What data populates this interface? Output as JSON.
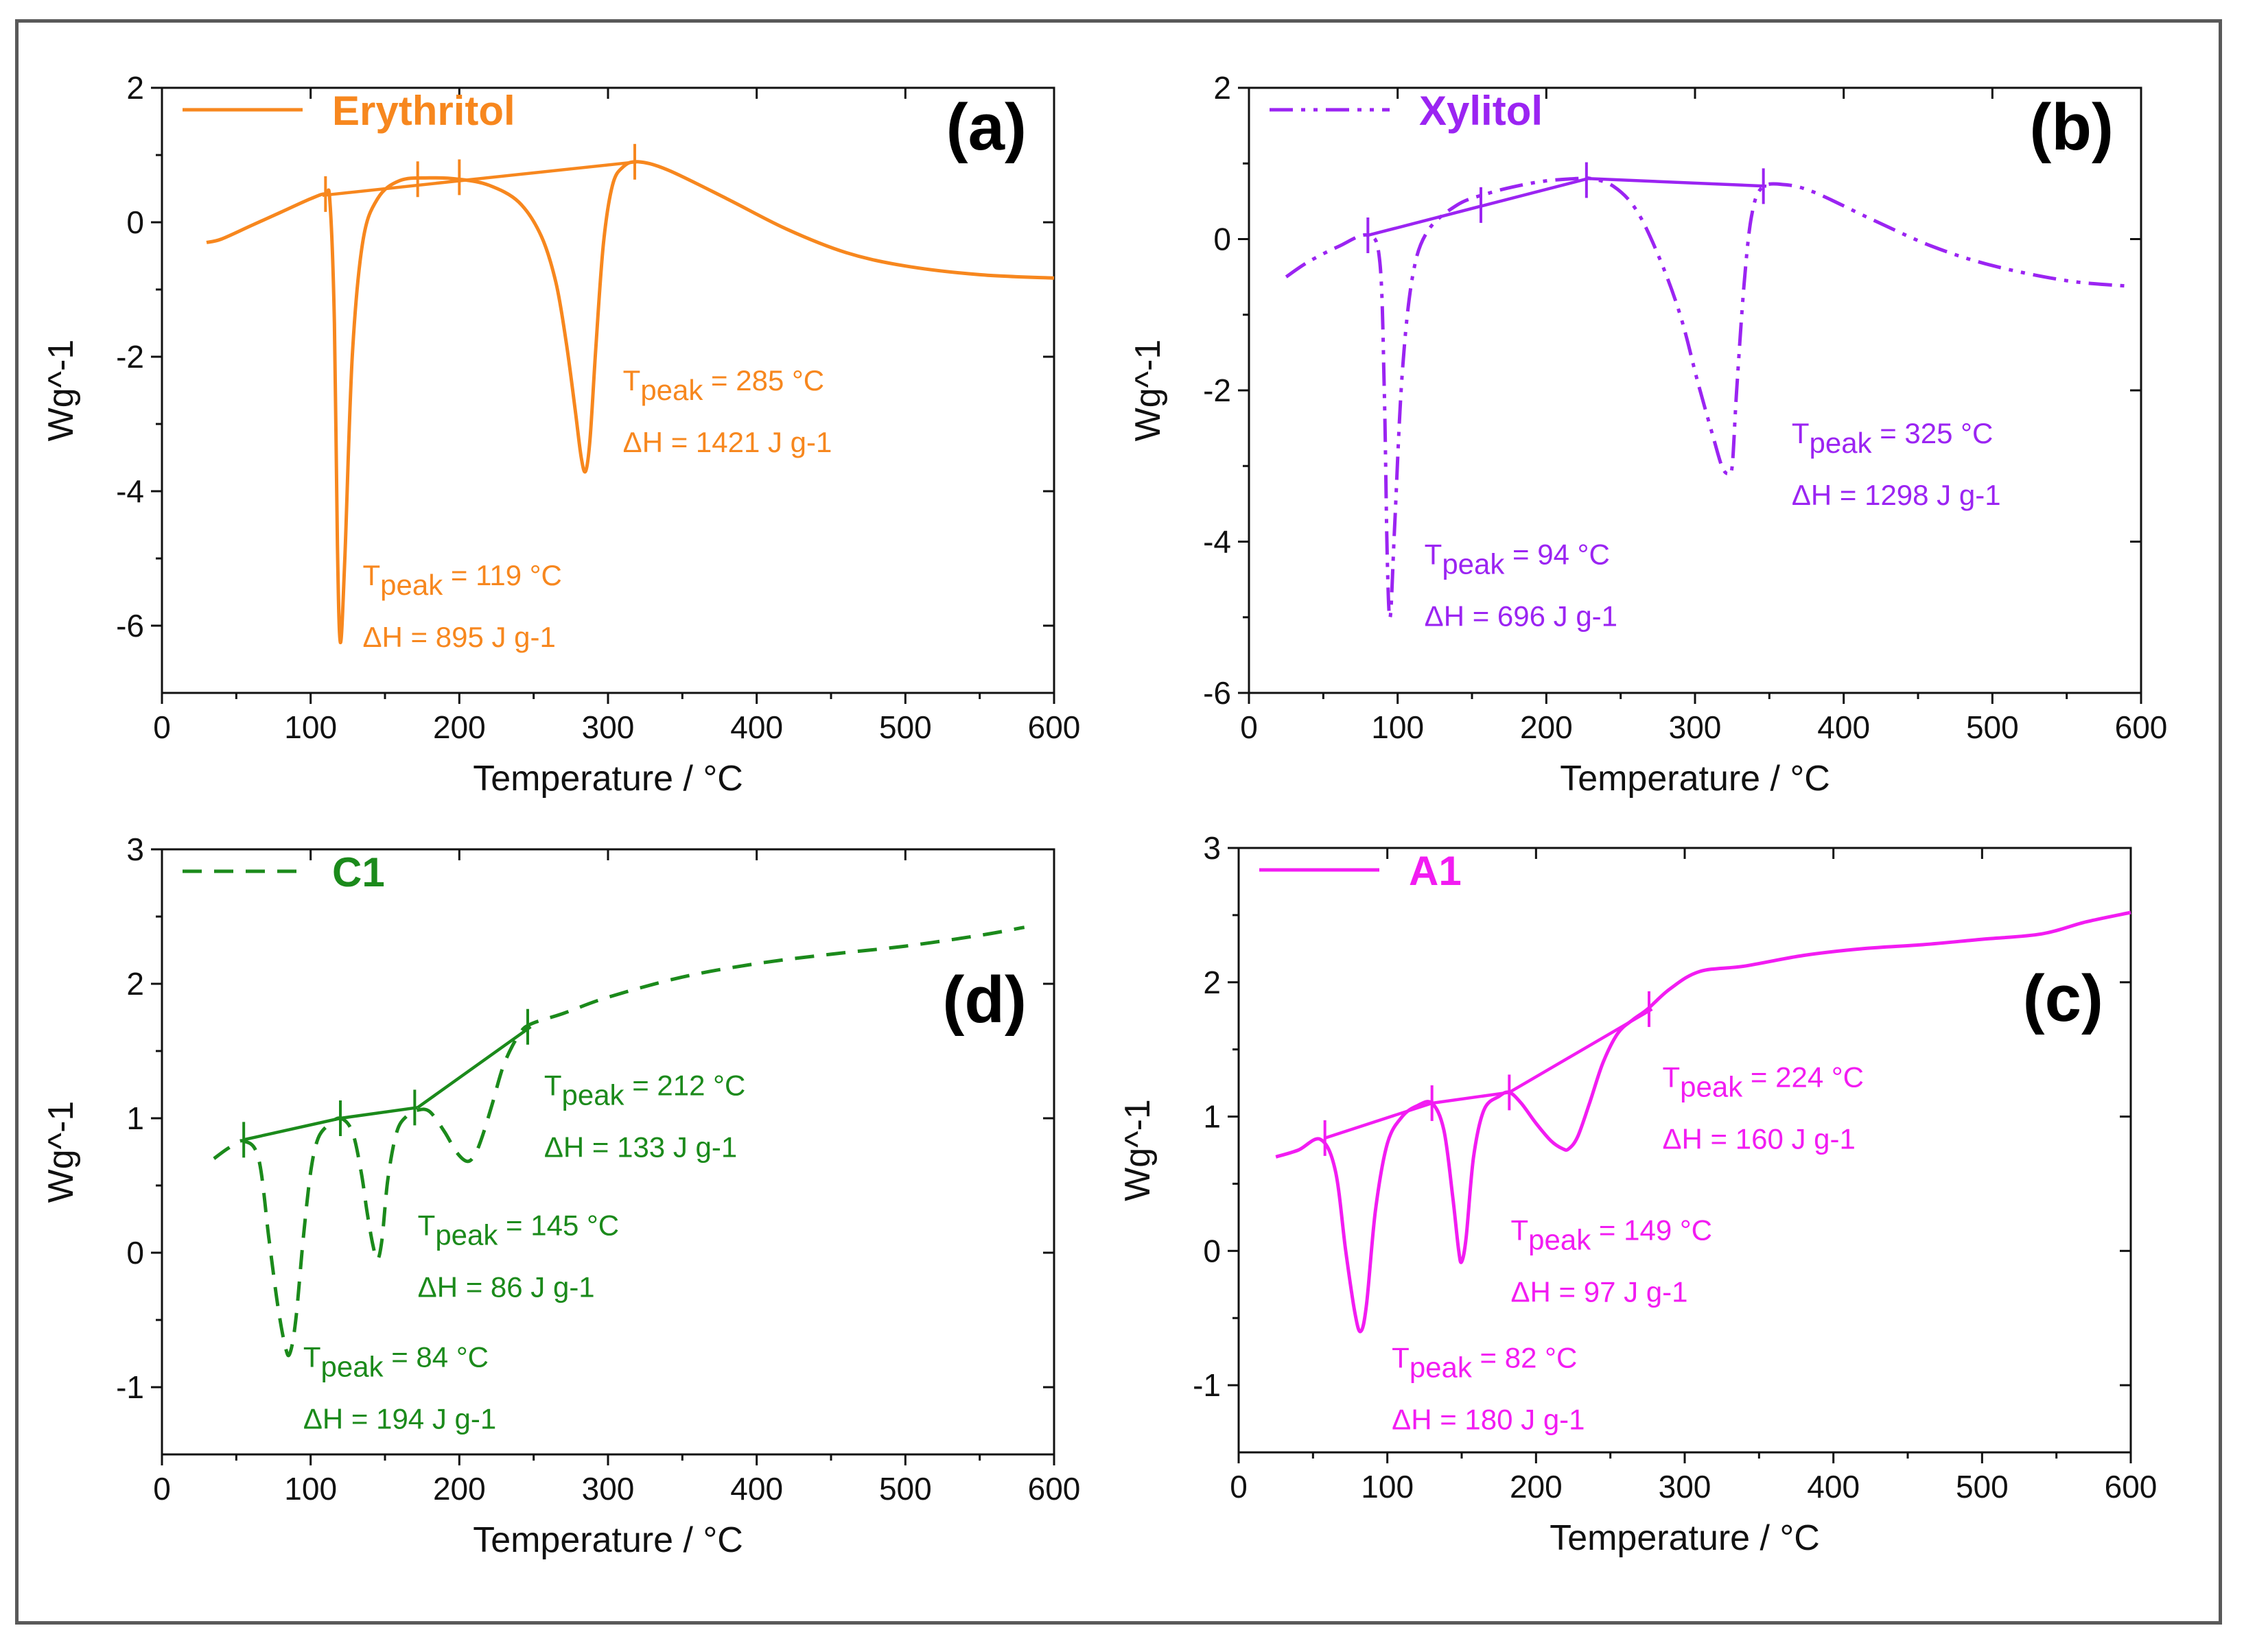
{
  "chart_data": [
    {
      "type": "line",
      "panel_label": "(a)",
      "legend": {
        "name": "Erythritol",
        "placement": "top-left",
        "line_style": "solid"
      },
      "color": "#F7871E",
      "xlabel": "Temperature / °C",
      "ylabel": "Wg^-1",
      "xlim": [
        0,
        600
      ],
      "ylim": [
        -7,
        2
      ],
      "xticks": [
        0,
        100,
        200,
        300,
        400,
        500,
        600
      ],
      "yticks": [
        -6,
        -4,
        -2,
        0,
        2
      ],
      "series": [
        {
          "name": "Erythritol",
          "x": [
            30,
            40,
            60,
            80,
            100,
            110,
            113,
            116,
            118,
            120,
            123,
            128,
            135,
            145,
            160,
            180,
            200,
            220,
            240,
            255,
            265,
            272,
            278,
            282,
            285,
            288,
            292,
            297,
            303,
            310,
            320,
            340,
            380,
            420,
            460,
            500,
            550,
            600
          ],
          "y": [
            -0.3,
            -0.25,
            -0.05,
            0.15,
            0.35,
            0.42,
            0.3,
            -1.5,
            -4.8,
            -6.25,
            -5.0,
            -2.0,
            -0.3,
            0.35,
            0.62,
            0.66,
            0.64,
            0.55,
            0.3,
            -0.2,
            -0.9,
            -1.8,
            -2.8,
            -3.5,
            -3.7,
            -3.2,
            -1.8,
            -0.3,
            0.55,
            0.82,
            0.9,
            0.78,
            0.35,
            -0.1,
            -0.45,
            -0.65,
            -0.78,
            -0.83
          ]
        }
      ],
      "baselines": [
        {
          "x": [
            108,
            320
          ],
          "y": [
            0.4,
            0.9
          ]
        }
      ],
      "markers": [
        {
          "x": 110,
          "y": 0.42
        },
        {
          "x": 172,
          "y": 0.64
        },
        {
          "x": 200,
          "y": 0.67
        },
        {
          "x": 318,
          "y": 0.9
        }
      ],
      "annotations": [
        {
          "label_main": "T",
          "label_sub": "peak",
          "label_rest": " = 285 °C",
          "enthalpy": "ΔH = 1421 J g-1",
          "x": 310,
          "y": -2.5
        },
        {
          "label_main": "T",
          "label_sub": "peak",
          "label_rest": " = 119 °C",
          "enthalpy": "ΔH = 895 J g-1",
          "x": 135,
          "y": -5.4
        }
      ]
    },
    {
      "type": "line",
      "panel_label": "(b)",
      "legend": {
        "name": "Xylitol",
        "placement": "top-left",
        "line_style": "dash-dot-dot"
      },
      "color": "#9B24F2",
      "xlabel": "Temperature / °C",
      "ylabel": "Wg^-1",
      "xlim": [
        0,
        600
      ],
      "ylim": [
        -6,
        2
      ],
      "xticks": [
        0,
        100,
        200,
        300,
        400,
        500,
        600
      ],
      "yticks": [
        -6,
        -4,
        -2,
        0,
        2
      ],
      "series": [
        {
          "name": "Xylitol",
          "x": [
            25,
            40,
            60,
            80,
            88,
            91,
            93,
            95,
            98,
            103,
            110,
            120,
            140,
            160,
            180,
            200,
            220,
            230,
            245,
            260,
            275,
            290,
            302,
            312,
            318,
            322,
            325,
            328,
            333,
            338,
            345,
            360,
            380,
            420,
            460,
            500,
            550,
            590
          ],
          "y": [
            -0.5,
            -0.3,
            -0.1,
            0.05,
            -0.3,
            -2.0,
            -4.2,
            -5.0,
            -3.8,
            -1.8,
            -0.5,
            0.1,
            0.45,
            0.6,
            0.7,
            0.77,
            0.8,
            0.8,
            0.7,
            0.4,
            -0.2,
            -1.0,
            -1.9,
            -2.6,
            -3.0,
            -3.1,
            -3.0,
            -2.0,
            -0.6,
            0.3,
            0.68,
            0.72,
            0.62,
            0.25,
            -0.1,
            -0.35,
            -0.55,
            -0.62
          ]
        }
      ],
      "baselines": [
        {
          "x": [
            80,
            228
          ],
          "y": [
            0.05,
            0.8
          ]
        },
        {
          "x": [
            228,
            348
          ],
          "y": [
            0.8,
            0.7
          ]
        }
      ],
      "markers": [
        {
          "x": 80,
          "y": 0.05
        },
        {
          "x": 156,
          "y": 0.45
        },
        {
          "x": 227,
          "y": 0.78
        },
        {
          "x": 346,
          "y": 0.7
        }
      ],
      "annotations": [
        {
          "label_main": "T",
          "label_sub": "peak",
          "label_rest": " = 325 °C",
          "enthalpy": "ΔH = 1298 J g-1",
          "x": 365,
          "y": -2.7
        },
        {
          "label_main": "T",
          "label_sub": "peak",
          "label_rest": " = 94 °C",
          "enthalpy": "ΔH = 696 J g-1",
          "x": 118,
          "y": -4.3
        }
      ]
    },
    {
      "type": "line",
      "panel_label": "(d)",
      "legend": {
        "name": "C1",
        "placement": "top-left",
        "line_style": "dashed"
      },
      "color": "#1B8A1B",
      "xlabel": "Temperature / °C",
      "ylabel": "Wg^-1",
      "xlim": [
        0,
        600
      ],
      "ylim": [
        -1.5,
        3
      ],
      "xticks": [
        0,
        100,
        200,
        300,
        400,
        500,
        600
      ],
      "yticks": [
        -1,
        0,
        1,
        2,
        3
      ],
      "series": [
        {
          "name": "C1",
          "x": [
            35,
            45,
            55,
            65,
            72,
            78,
            83,
            86,
            90,
            95,
            100,
            105,
            112,
            120,
            128,
            134,
            138,
            142,
            145,
            148,
            152,
            158,
            165,
            172,
            180,
            190,
            198,
            205,
            210,
            215,
            222,
            230,
            240,
            248,
            270,
            300,
            350,
            400,
            450,
            500,
            550,
            580
          ],
          "y": [
            0.7,
            0.78,
            0.83,
            0.7,
            0.1,
            -0.4,
            -0.7,
            -0.75,
            -0.5,
            0.1,
            0.6,
            0.85,
            0.95,
            1.0,
            0.9,
            0.6,
            0.3,
            0.05,
            -0.05,
            0.1,
            0.55,
            0.9,
            1.02,
            1.06,
            1.05,
            0.9,
            0.75,
            0.68,
            0.72,
            0.85,
            1.1,
            1.4,
            1.62,
            1.7,
            1.78,
            1.9,
            2.05,
            2.15,
            2.22,
            2.28,
            2.36,
            2.42
          ]
        }
      ],
      "baselines": [
        {
          "x": [
            55,
            120
          ],
          "y": [
            0.84,
            1.0
          ]
        },
        {
          "x": [
            120,
            172
          ],
          "y": [
            1.0,
            1.08
          ]
        },
        {
          "x": [
            172,
            248
          ],
          "y": [
            1.08,
            1.68
          ]
        }
      ],
      "markers": [
        {
          "x": 55,
          "y": 0.84
        },
        {
          "x": 120,
          "y": 1.0
        },
        {
          "x": 170,
          "y": 1.08
        },
        {
          "x": 246,
          "y": 1.68
        }
      ],
      "annotations": [
        {
          "label_main": "T",
          "label_sub": "peak",
          "label_rest": " = 212 °C",
          "enthalpy": "ΔH = 133 J g-1",
          "x": 257,
          "y": 1.17
        },
        {
          "label_main": "T",
          "label_sub": "peak",
          "label_rest": " = 145 °C",
          "enthalpy": "ΔH = 86 J g-1",
          "x": 172,
          "y": 0.13
        },
        {
          "label_main": "T",
          "label_sub": "peak",
          "label_rest": " = 84 °C",
          "enthalpy": "ΔH = 194 J g-1",
          "x": 95,
          "y": -0.85
        }
      ]
    },
    {
      "type": "line",
      "panel_label": "(c)",
      "legend": {
        "name": "A1",
        "placement": "top-left",
        "line_style": "solid"
      },
      "color": "#F21CF2",
      "xlabel": "Temperature / °C",
      "ylabel": "Wg^-1",
      "xlim": [
        0,
        600
      ],
      "ylim": [
        -1.5,
        3
      ],
      "xticks": [
        0,
        100,
        200,
        300,
        400,
        500,
        600
      ],
      "yticks": [
        -1,
        0,
        1,
        2,
        3
      ],
      "series": [
        {
          "name": "A1",
          "x": [
            25,
            40,
            55,
            65,
            72,
            78,
            82,
            86,
            92,
            100,
            110,
            120,
            130,
            138,
            144,
            148,
            150,
            153,
            158,
            165,
            175,
            182,
            190,
            200,
            210,
            218,
            222,
            228,
            236,
            245,
            255,
            265,
            275,
            290,
            310,
            340,
            380,
            420,
            460,
            500,
            540,
            570,
            600
          ],
          "y": [
            0.7,
            0.75,
            0.83,
            0.6,
            0.0,
            -0.45,
            -0.6,
            -0.4,
            0.3,
            0.8,
            1.0,
            1.08,
            1.1,
            0.9,
            0.4,
            0.0,
            -0.08,
            0.1,
            0.7,
            1.05,
            1.15,
            1.18,
            1.1,
            0.95,
            0.82,
            0.76,
            0.76,
            0.85,
            1.1,
            1.4,
            1.62,
            1.72,
            1.8,
            1.95,
            2.08,
            2.12,
            2.2,
            2.25,
            2.28,
            2.32,
            2.36,
            2.45,
            2.52
          ]
        }
      ],
      "baselines": [
        {
          "x": [
            58,
            130
          ],
          "y": [
            0.84,
            1.1
          ]
        },
        {
          "x": [
            130,
            182
          ],
          "y": [
            1.1,
            1.18
          ]
        },
        {
          "x": [
            182,
            278
          ],
          "y": [
            1.18,
            1.8
          ]
        }
      ],
      "markers": [
        {
          "x": 58,
          "y": 0.84
        },
        {
          "x": 130,
          "y": 1.1
        },
        {
          "x": 182,
          "y": 1.18
        },
        {
          "x": 276,
          "y": 1.8
        }
      ],
      "annotations": [
        {
          "label_main": "T",
          "label_sub": "peak",
          "label_rest": " = 224 °C",
          "enthalpy": "ΔH = 160 J g-1",
          "x": 285,
          "y": 1.22
        },
        {
          "label_main": "T",
          "label_sub": "peak",
          "label_rest": " = 149 °C",
          "enthalpy": "ΔH = 97 J g-1",
          "x": 183,
          "y": 0.08
        },
        {
          "label_main": "T",
          "label_sub": "peak",
          "label_rest": " = 82 °C",
          "enthalpy": "ΔH = 180 J g-1",
          "x": 103,
          "y": -0.87
        }
      ]
    }
  ]
}
